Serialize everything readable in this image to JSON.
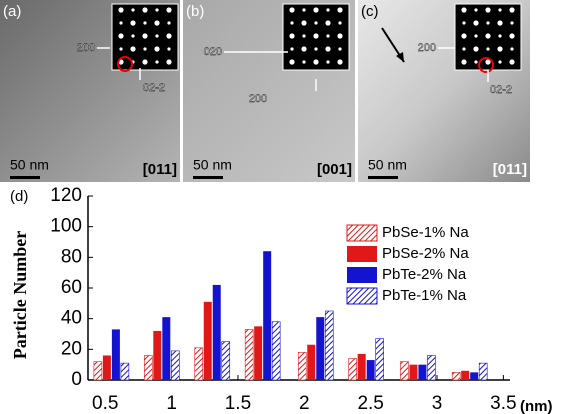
{
  "panels": [
    {
      "label": "(a)",
      "spots": [
        "200",
        "02-2"
      ],
      "scale": "50 nm",
      "zone": "[011]"
    },
    {
      "label": "(b)",
      "spots": [
        "020",
        "200"
      ],
      "scale": "50 nm",
      "zone": "[001]"
    },
    {
      "label": "(c)",
      "spots": [
        "200",
        "02-2"
      ],
      "scale": "50 nm",
      "zone": "[011]"
    }
  ],
  "chart_data": {
    "type": "bar",
    "label": "(d)",
    "y_label": "Particle Number",
    "x_label": "(nm)",
    "x": [
      0.55,
      0.93,
      1.31,
      1.69,
      2.09,
      2.47,
      2.86,
      3.25
    ],
    "series": [
      {
        "name": "PbSe-1% Na",
        "color": "#e01818",
        "hatch": true,
        "values": [
          12,
          16,
          21,
          33,
          18,
          14,
          12,
          5
        ]
      },
      {
        "name": "PbSe-2% Na",
        "color": "#e01818",
        "hatch": false,
        "values": [
          16,
          32,
          51,
          35,
          23,
          17,
          10,
          6
        ]
      },
      {
        "name": "PbTe-2% Na",
        "color": "#1414d0",
        "hatch": false,
        "values": [
          33,
          41,
          62,
          84,
          41,
          13,
          10,
          5
        ]
      },
      {
        "name": "PbTe-1% Na",
        "color": "#1414d0",
        "hatch": true,
        "values": [
          11,
          19,
          25,
          38,
          45,
          27,
          16,
          11
        ]
      }
    ],
    "xlim": [
      0.37,
      3.55
    ],
    "xticks": [
      0.5,
      1.0,
      1.5,
      2.0,
      2.5,
      3.0,
      3.5
    ],
    "ylim": [
      0,
      120
    ],
    "yticks": [
      0,
      20,
      40,
      60,
      80,
      100,
      120
    ],
    "legend": "upper right"
  }
}
